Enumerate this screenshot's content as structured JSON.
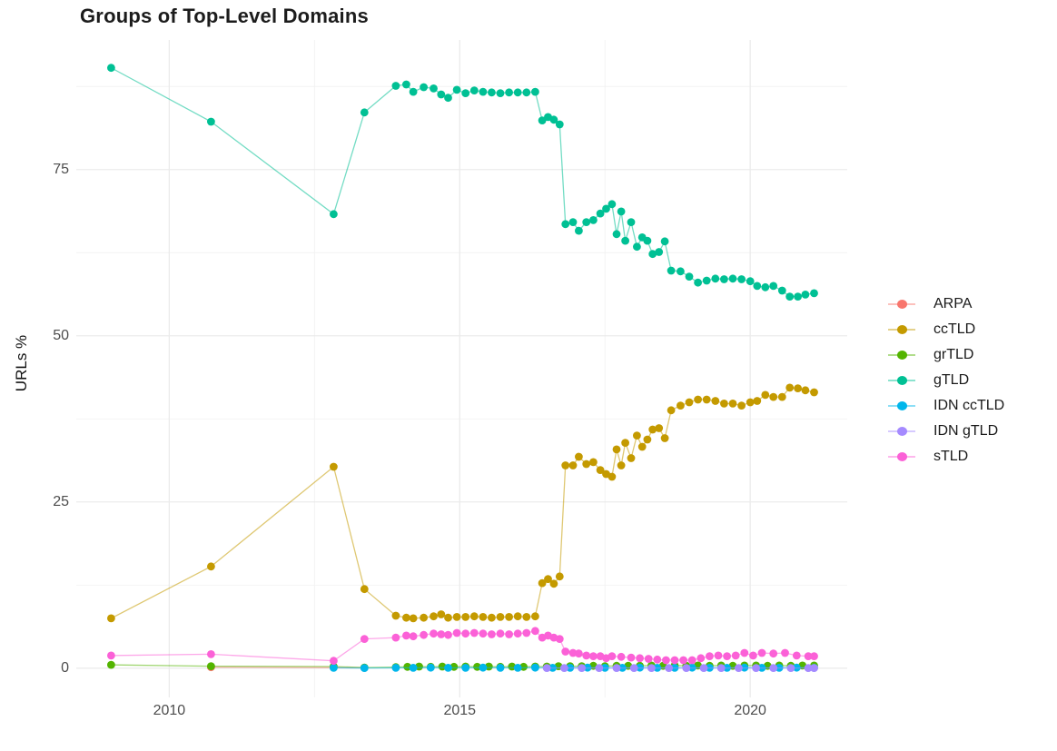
{
  "chart_data": {
    "type": "line",
    "title": "Groups of Top-Level Domains",
    "xlabel": "",
    "ylabel": "URLs %",
    "grid": "on",
    "legend_position": "right",
    "background": "#ffffff",
    "grid_color_major": "#ebebeb",
    "grid_color_minor": "#f2f2f2",
    "x_range": [
      2008.4,
      2021.67
    ],
    "y_range": [
      -4.4,
      94.5
    ],
    "x_ticks": {
      "major": [
        2010,
        2015,
        2020
      ],
      "minor": [
        2012.5,
        2017.5
      ]
    },
    "y_ticks": {
      "major": [
        0,
        25,
        50,
        75
      ],
      "minor": [
        12.5,
        37.5,
        62.5,
        87.5
      ]
    },
    "series": [
      {
        "name": "ARPA",
        "color": "#F8766D",
        "points": [
          [
            2010.72,
            0.15
          ],
          [
            2012.83,
            0.1
          ],
          [
            2013.36,
            0.05
          ]
        ]
      },
      {
        "name": "ccTLD",
        "color": "#C49A00",
        "points": [
          [
            2009.0,
            7.5
          ],
          [
            2010.72,
            15.3
          ],
          [
            2012.83,
            30.3
          ],
          [
            2013.36,
            11.9
          ],
          [
            2013.9,
            7.9
          ],
          [
            2014.08,
            7.6
          ],
          [
            2014.2,
            7.5
          ],
          [
            2014.38,
            7.6
          ],
          [
            2014.55,
            7.8
          ],
          [
            2014.68,
            8.1
          ],
          [
            2014.8,
            7.6
          ],
          [
            2014.95,
            7.7
          ],
          [
            2015.1,
            7.7
          ],
          [
            2015.25,
            7.8
          ],
          [
            2015.4,
            7.7
          ],
          [
            2015.55,
            7.6
          ],
          [
            2015.7,
            7.7
          ],
          [
            2015.85,
            7.7
          ],
          [
            2016.0,
            7.8
          ],
          [
            2016.15,
            7.7
          ],
          [
            2016.3,
            7.8
          ],
          [
            2016.42,
            12.8
          ],
          [
            2016.52,
            13.4
          ],
          [
            2016.62,
            12.7
          ],
          [
            2016.72,
            13.8
          ],
          [
            2016.82,
            30.5
          ],
          [
            2016.95,
            30.5
          ],
          [
            2017.05,
            31.8
          ],
          [
            2017.18,
            30.7
          ],
          [
            2017.3,
            31.0
          ],
          [
            2017.42,
            29.8
          ],
          [
            2017.52,
            29.2
          ],
          [
            2017.62,
            28.8
          ],
          [
            2017.7,
            32.9
          ],
          [
            2017.78,
            30.5
          ],
          [
            2017.85,
            33.9
          ],
          [
            2017.95,
            31.6
          ],
          [
            2018.05,
            35.0
          ],
          [
            2018.14,
            33.3
          ],
          [
            2018.23,
            34.4
          ],
          [
            2018.32,
            35.9
          ],
          [
            2018.43,
            36.1
          ],
          [
            2018.53,
            34.6
          ],
          [
            2018.64,
            38.8
          ],
          [
            2018.8,
            39.5
          ],
          [
            2018.95,
            40.0
          ],
          [
            2019.1,
            40.4
          ],
          [
            2019.25,
            40.4
          ],
          [
            2019.4,
            40.2
          ],
          [
            2019.55,
            39.8
          ],
          [
            2019.7,
            39.8
          ],
          [
            2019.85,
            39.5
          ],
          [
            2020.0,
            40.0
          ],
          [
            2020.12,
            40.2
          ],
          [
            2020.26,
            41.1
          ],
          [
            2020.4,
            40.8
          ],
          [
            2020.55,
            40.8
          ],
          [
            2020.68,
            42.2
          ],
          [
            2020.82,
            42.1
          ],
          [
            2020.95,
            41.8
          ],
          [
            2021.1,
            41.5
          ]
        ]
      },
      {
        "name": "grTLD",
        "color": "#53B400",
        "points": [
          [
            2009.0,
            0.5
          ],
          [
            2010.72,
            0.3
          ],
          [
            2012.83,
            0.25
          ],
          [
            2013.36,
            0.1
          ],
          [
            2013.9,
            0.15
          ],
          [
            2014.1,
            0.2
          ],
          [
            2014.3,
            0.25
          ],
          [
            2014.5,
            0.2
          ],
          [
            2014.7,
            0.25
          ],
          [
            2014.9,
            0.2
          ],
          [
            2015.1,
            0.25
          ],
          [
            2015.3,
            0.2
          ],
          [
            2015.5,
            0.25
          ],
          [
            2015.7,
            0.2
          ],
          [
            2015.9,
            0.25
          ],
          [
            2016.1,
            0.2
          ],
          [
            2016.3,
            0.25
          ],
          [
            2016.5,
            0.25
          ],
          [
            2016.7,
            0.3
          ],
          [
            2016.9,
            0.3
          ],
          [
            2017.1,
            0.3
          ],
          [
            2017.3,
            0.35
          ],
          [
            2017.5,
            0.3
          ],
          [
            2017.7,
            0.35
          ],
          [
            2017.9,
            0.35
          ],
          [
            2018.1,
            0.35
          ],
          [
            2018.3,
            0.4
          ],
          [
            2018.5,
            0.35
          ],
          [
            2018.7,
            0.4
          ],
          [
            2018.9,
            0.35
          ],
          [
            2019.1,
            0.4
          ],
          [
            2019.3,
            0.35
          ],
          [
            2019.5,
            0.4
          ],
          [
            2019.7,
            0.35
          ],
          [
            2019.9,
            0.4
          ],
          [
            2020.1,
            0.4
          ],
          [
            2020.3,
            0.35
          ],
          [
            2020.5,
            0.4
          ],
          [
            2020.7,
            0.35
          ],
          [
            2020.9,
            0.4
          ],
          [
            2021.1,
            0.4
          ]
        ]
      },
      {
        "name": "gTLD",
        "color": "#00C094",
        "points": [
          [
            2009.0,
            90.3
          ],
          [
            2010.72,
            82.2
          ],
          [
            2012.83,
            68.3
          ],
          [
            2013.36,
            83.6
          ],
          [
            2013.9,
            87.6
          ],
          [
            2014.08,
            87.8
          ],
          [
            2014.2,
            86.7
          ],
          [
            2014.38,
            87.4
          ],
          [
            2014.55,
            87.2
          ],
          [
            2014.68,
            86.3
          ],
          [
            2014.8,
            85.8
          ],
          [
            2014.95,
            87.0
          ],
          [
            2015.1,
            86.5
          ],
          [
            2015.25,
            86.9
          ],
          [
            2015.4,
            86.7
          ],
          [
            2015.55,
            86.6
          ],
          [
            2015.7,
            86.5
          ],
          [
            2015.85,
            86.6
          ],
          [
            2016.0,
            86.6
          ],
          [
            2016.15,
            86.6
          ],
          [
            2016.3,
            86.7
          ],
          [
            2016.42,
            82.4
          ],
          [
            2016.52,
            82.9
          ],
          [
            2016.62,
            82.5
          ],
          [
            2016.72,
            81.8
          ],
          [
            2016.82,
            66.8
          ],
          [
            2016.95,
            67.1
          ],
          [
            2017.05,
            65.8
          ],
          [
            2017.18,
            67.1
          ],
          [
            2017.3,
            67.4
          ],
          [
            2017.42,
            68.4
          ],
          [
            2017.52,
            69.1
          ],
          [
            2017.62,
            69.8
          ],
          [
            2017.7,
            65.3
          ],
          [
            2017.78,
            68.7
          ],
          [
            2017.85,
            64.3
          ],
          [
            2017.95,
            67.1
          ],
          [
            2018.05,
            63.4
          ],
          [
            2018.14,
            64.8
          ],
          [
            2018.23,
            64.3
          ],
          [
            2018.32,
            62.3
          ],
          [
            2018.43,
            62.6
          ],
          [
            2018.53,
            64.2
          ],
          [
            2018.64,
            59.8
          ],
          [
            2018.8,
            59.7
          ],
          [
            2018.95,
            58.9
          ],
          [
            2019.1,
            58.0
          ],
          [
            2019.25,
            58.3
          ],
          [
            2019.4,
            58.6
          ],
          [
            2019.55,
            58.5
          ],
          [
            2019.7,
            58.6
          ],
          [
            2019.85,
            58.5
          ],
          [
            2020.0,
            58.2
          ],
          [
            2020.12,
            57.5
          ],
          [
            2020.26,
            57.3
          ],
          [
            2020.4,
            57.5
          ],
          [
            2020.55,
            56.8
          ],
          [
            2020.68,
            55.9
          ],
          [
            2020.82,
            55.9
          ],
          [
            2020.95,
            56.2
          ],
          [
            2021.1,
            56.4
          ]
        ]
      },
      {
        "name": "IDN ccTLD",
        "color": "#00B6EB",
        "points": [
          [
            2012.83,
            0.05
          ],
          [
            2013.36,
            0.02
          ],
          [
            2013.9,
            0.05
          ],
          [
            2014.2,
            0.05
          ],
          [
            2014.5,
            0.08
          ],
          [
            2014.8,
            0.05
          ],
          [
            2015.1,
            0.05
          ],
          [
            2015.4,
            0.08
          ],
          [
            2015.7,
            0.05
          ],
          [
            2016.0,
            0.05
          ],
          [
            2016.3,
            0.08
          ],
          [
            2016.6,
            0.05
          ],
          [
            2016.9,
            0.05
          ],
          [
            2017.2,
            0.08
          ],
          [
            2017.5,
            0.05
          ],
          [
            2017.8,
            0.05
          ],
          [
            2018.1,
            0.08
          ],
          [
            2018.4,
            0.05
          ],
          [
            2018.7,
            0.05
          ],
          [
            2019.0,
            0.08
          ],
          [
            2019.3,
            0.05
          ],
          [
            2019.6,
            0.05
          ],
          [
            2019.9,
            0.08
          ],
          [
            2020.2,
            0.05
          ],
          [
            2020.5,
            0.05
          ],
          [
            2020.8,
            0.08
          ],
          [
            2021.1,
            0.05
          ]
        ]
      },
      {
        "name": "IDN gTLD",
        "color": "#A58AFF",
        "points": [
          [
            2016.5,
            0.02
          ],
          [
            2016.8,
            0.02
          ],
          [
            2017.1,
            0.02
          ],
          [
            2017.4,
            0.02
          ],
          [
            2017.7,
            0.02
          ],
          [
            2018.0,
            0.02
          ],
          [
            2018.3,
            0.02
          ],
          [
            2018.6,
            0.02
          ],
          [
            2018.9,
            0.02
          ],
          [
            2019.2,
            0.02
          ],
          [
            2019.5,
            0.02
          ],
          [
            2019.8,
            0.02
          ],
          [
            2020.1,
            0.02
          ],
          [
            2020.4,
            0.02
          ],
          [
            2020.7,
            0.02
          ],
          [
            2021.0,
            0.02
          ],
          [
            2021.1,
            0.02
          ]
        ]
      },
      {
        "name": "sTLD",
        "color": "#FB61D7",
        "points": [
          [
            2009.0,
            1.9
          ],
          [
            2010.72,
            2.1
          ],
          [
            2012.83,
            1.1
          ],
          [
            2013.36,
            4.4
          ],
          [
            2013.9,
            4.6
          ],
          [
            2014.08,
            4.9
          ],
          [
            2014.2,
            4.8
          ],
          [
            2014.38,
            5.0
          ],
          [
            2014.55,
            5.2
          ],
          [
            2014.68,
            5.1
          ],
          [
            2014.8,
            5.0
          ],
          [
            2014.95,
            5.3
          ],
          [
            2015.1,
            5.2
          ],
          [
            2015.25,
            5.3
          ],
          [
            2015.4,
            5.2
          ],
          [
            2015.55,
            5.1
          ],
          [
            2015.7,
            5.2
          ],
          [
            2015.85,
            5.1
          ],
          [
            2016.0,
            5.2
          ],
          [
            2016.15,
            5.3
          ],
          [
            2016.3,
            5.6
          ],
          [
            2016.42,
            4.6
          ],
          [
            2016.52,
            4.9
          ],
          [
            2016.62,
            4.6
          ],
          [
            2016.72,
            4.4
          ],
          [
            2016.82,
            2.5
          ],
          [
            2016.95,
            2.3
          ],
          [
            2017.05,
            2.2
          ],
          [
            2017.18,
            1.9
          ],
          [
            2017.3,
            1.8
          ],
          [
            2017.42,
            1.8
          ],
          [
            2017.52,
            1.5
          ],
          [
            2017.62,
            1.8
          ],
          [
            2017.78,
            1.7
          ],
          [
            2017.95,
            1.6
          ],
          [
            2018.1,
            1.5
          ],
          [
            2018.25,
            1.4
          ],
          [
            2018.4,
            1.3
          ],
          [
            2018.55,
            1.2
          ],
          [
            2018.7,
            1.2
          ],
          [
            2018.85,
            1.2
          ],
          [
            2019.0,
            1.2
          ],
          [
            2019.15,
            1.5
          ],
          [
            2019.3,
            1.8
          ],
          [
            2019.45,
            1.9
          ],
          [
            2019.6,
            1.8
          ],
          [
            2019.75,
            1.9
          ],
          [
            2019.9,
            2.3
          ],
          [
            2020.05,
            1.9
          ],
          [
            2020.2,
            2.3
          ],
          [
            2020.4,
            2.2
          ],
          [
            2020.6,
            2.3
          ],
          [
            2020.8,
            1.9
          ],
          [
            2021.0,
            1.8
          ],
          [
            2021.1,
            1.8
          ]
        ]
      }
    ],
    "legend_items": [
      "ARPA",
      "ccTLD",
      "grTLD",
      "gTLD",
      "IDN ccTLD",
      "IDN gTLD",
      "sTLD"
    ]
  }
}
